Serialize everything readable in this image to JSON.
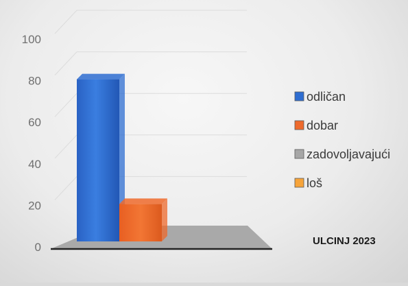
{
  "chart_data": {
    "type": "bar",
    "title": "",
    "xlabel": "",
    "ylabel": "",
    "ylim": [
      0,
      100
    ],
    "yticks": [
      0,
      20,
      40,
      60,
      80,
      100
    ],
    "grid": true,
    "legend_position": "right",
    "series": [
      {
        "name": "odličan",
        "value": 80,
        "color": "#2e6dd1"
      },
      {
        "name": "dobar",
        "value": 20,
        "color": "#ee6a2c"
      },
      {
        "name": "zadovoljavajući",
        "value": 0,
        "color": "#a6a6a6"
      },
      {
        "name": "loš",
        "value": 0,
        "color": "#f7a43a"
      }
    ],
    "annotation": "ULCINJ 2023"
  }
}
